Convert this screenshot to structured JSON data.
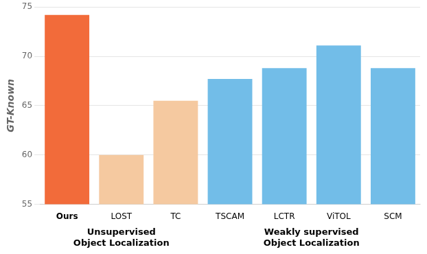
{
  "chart_data": {
    "type": "bar",
    "categories": [
      "Ours",
      "LOST",
      "TC",
      "TSCAM",
      "LCTR",
      "ViTOL",
      "SCM"
    ],
    "values": [
      74.2,
      60.0,
      65.5,
      67.7,
      68.8,
      71.1,
      68.8
    ],
    "colors": [
      "#F26B3A",
      "#F5C9A0",
      "#F5C9A0",
      "#72BDE8",
      "#72BDE8",
      "#72BDE8",
      "#72BDE8"
    ],
    "ylabel": "GT-Known",
    "ylim": [
      55,
      75
    ],
    "yticks": [
      55,
      60,
      65,
      70,
      75
    ],
    "grid": true,
    "annotations": [
      {
        "text": "Unsupervised\nObject Localization",
        "categories": [
          "Ours",
          "LOST",
          "TC"
        ]
      },
      {
        "text": "Weakly supervised\nObject Localization",
        "categories": [
          "TSCAM",
          "LCTR",
          "ViTOL",
          "SCM"
        ]
      }
    ]
  }
}
